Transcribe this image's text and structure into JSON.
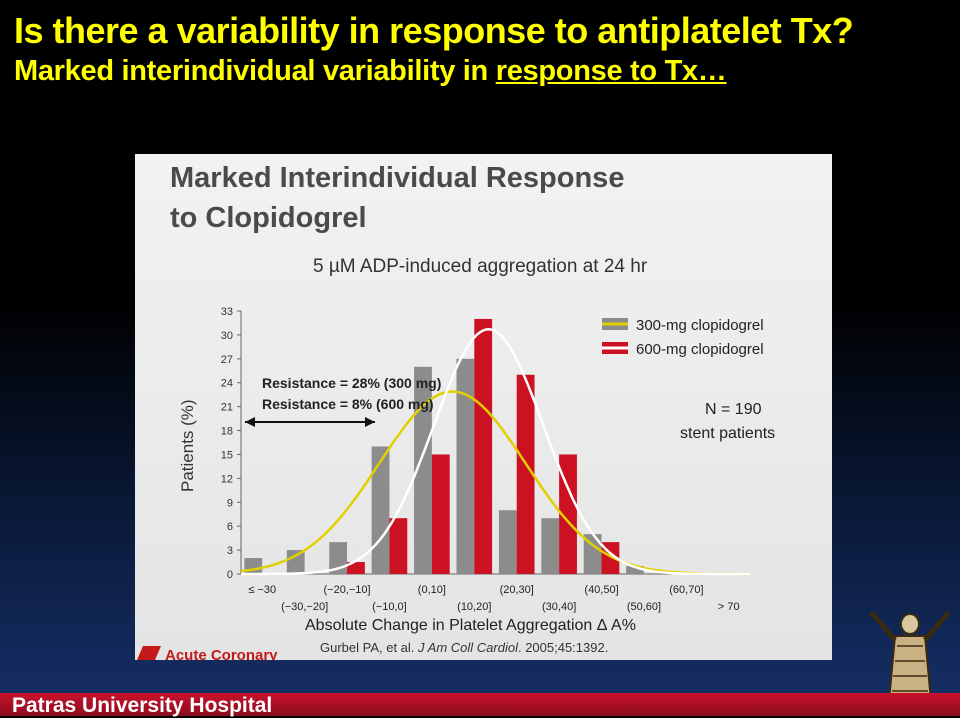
{
  "slide": {
    "title": "Is there a variability in response to antiplatelet Tx?",
    "subtitle_plain": "Marked interindividual variability in ",
    "subtitle_underlined": "response to Tx…",
    "footer": "Patras University Hospital"
  },
  "panel": {
    "title_line1": "Marked Interindividual Response",
    "title_line2": "to Clopidogrel",
    "subtitle": "5 µM ADP-induced aggregation at 24 hr",
    "resistance_300": "Resistance = 28% (300 mg)",
    "resistance_600": "Resistance = 8% (600 mg)",
    "n_line1": "N = 190",
    "n_line2": "stent patients",
    "citation_pre": "Gurbel PA, et al. ",
    "citation_journal": "J Am Coll Cardiol",
    "citation_post": ". 2005;45:1392.",
    "brand": "Acute Coronary"
  },
  "colors": {
    "bar300": "#8c8c8c",
    "bar600": "#cc1122",
    "curve300": "#e0d000",
    "curve600": "#ffffff"
  },
  "chart_data": {
    "type": "bar",
    "ylabel": "Patients (%)",
    "xlabel": "Absolute Change in Platelet Aggregation  Δ A%",
    "ylim": [
      0,
      33
    ],
    "yticks": [
      0,
      3,
      6,
      9,
      12,
      15,
      18,
      21,
      24,
      27,
      30,
      33
    ],
    "categories": [
      "≤ −30",
      "(−30,−20]",
      "(−20,−10]",
      "(−10,0]",
      "(0,10]",
      "(10,20]",
      "(20,30]",
      "(30,40]",
      "(40,50]",
      "(50,60]",
      "(60,70]",
      "> 70"
    ],
    "series": [
      {
        "name": "300-mg clopidogrel",
        "values": [
          2,
          3,
          4,
          16,
          26,
          27,
          8,
          7,
          5,
          1,
          0,
          0
        ]
      },
      {
        "name": "600-mg clopidogrel",
        "values": [
          0,
          0,
          1.5,
          7,
          15,
          32,
          25,
          15,
          4,
          0,
          0,
          0
        ]
      }
    ],
    "legend": "top-right"
  }
}
